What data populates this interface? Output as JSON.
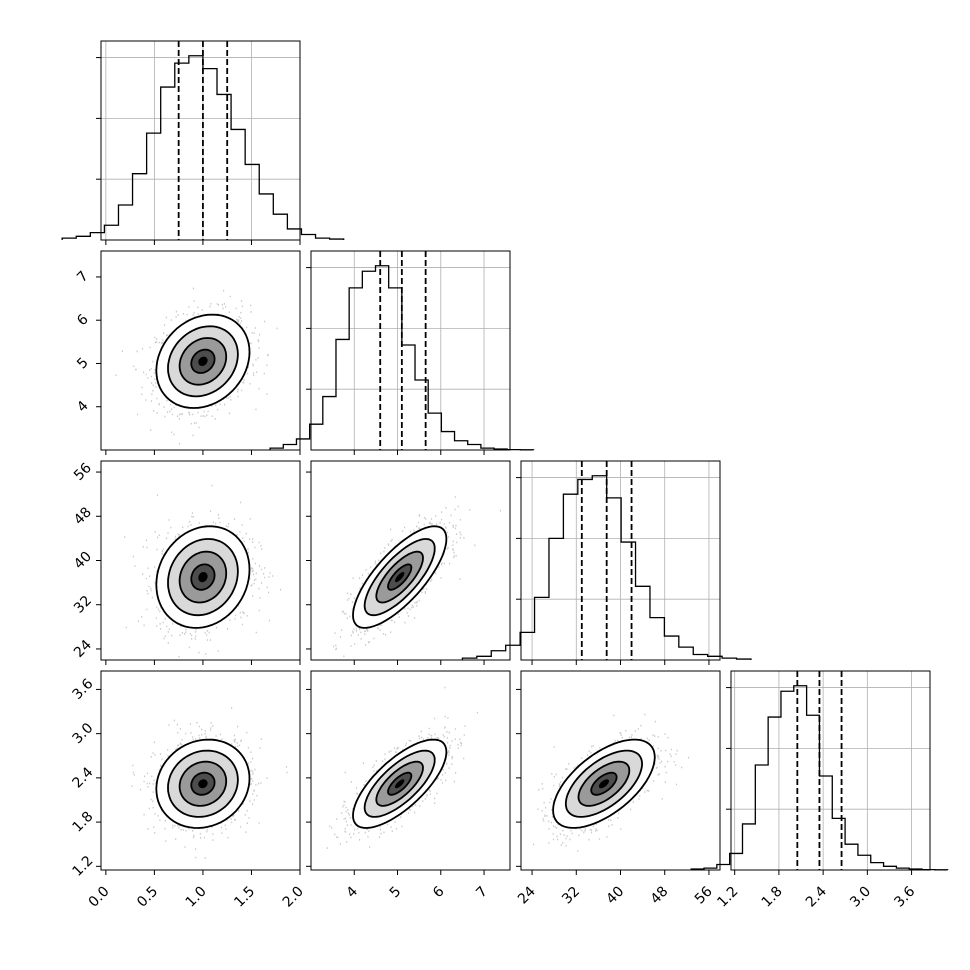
{
  "chart_data": {
    "type": "corner",
    "title": "",
    "parameters": [
      {
        "range": [
          -0.05,
          2.0
        ],
        "ticks": [
          "0.0",
          "0.5",
          "1.0",
          "1.5",
          "2.0"
        ],
        "tick_values": [
          0.0,
          0.5,
          1.0,
          1.5,
          2.0
        ],
        "quantiles": [
          0.75,
          1.0,
          1.25
        ],
        "hist_values": [
          0.01,
          0.02,
          0.04,
          0.08,
          0.19,
          0.36,
          0.58,
          0.83,
          0.96,
          1.0,
          0.93,
          0.79,
          0.6,
          0.41,
          0.25,
          0.14,
          0.06,
          0.03,
          0.01,
          0.005
        ]
      },
      {
        "range": [
          3.0,
          7.6
        ],
        "ticks": [
          "4",
          "5",
          "6",
          "7"
        ],
        "tick_values": [
          4,
          5,
          6,
          7
        ],
        "quantiles": [
          4.6,
          5.1,
          5.65
        ],
        "hist_values": [
          0.01,
          0.03,
          0.06,
          0.14,
          0.29,
          0.6,
          0.88,
          0.97,
          1.0,
          0.88,
          0.57,
          0.38,
          0.2,
          0.1,
          0.05,
          0.03,
          0.01,
          0.005,
          0.002,
          0.001
        ]
      },
      {
        "range": [
          22.0,
          58.0
        ],
        "ticks": [
          "24",
          "32",
          "40",
          "48",
          "56"
        ],
        "tick_values": [
          24,
          32,
          40,
          48,
          56
        ],
        "quantiles": [
          33.0,
          37.5,
          42.0
        ],
        "hist_values": [
          0.01,
          0.02,
          0.05,
          0.08,
          0.15,
          0.34,
          0.66,
          0.9,
          0.98,
          1.0,
          0.88,
          0.64,
          0.4,
          0.23,
          0.13,
          0.07,
          0.03,
          0.02,
          0.01,
          0.005
        ]
      },
      {
        "range": [
          1.15,
          3.85
        ],
        "ticks": [
          "1.2",
          "1.8",
          "2.4",
          "3.0",
          "3.6"
        ],
        "tick_values": [
          1.2,
          1.8,
          2.4,
          3.0,
          3.6
        ],
        "quantiles": [
          2.05,
          2.35,
          2.65
        ],
        "hist_values": [
          0.005,
          0.01,
          0.03,
          0.09,
          0.25,
          0.57,
          0.83,
          0.97,
          1.0,
          0.84,
          0.51,
          0.28,
          0.14,
          0.08,
          0.04,
          0.02,
          0.01,
          0.005,
          0.002,
          0.001
        ]
      }
    ],
    "means": [
      1.0,
      5.05,
      37.0,
      2.32
    ],
    "sds": [
      0.24,
      0.54,
      4.6,
      0.3
    ],
    "correlations": [
      [
        0,
        1,
        0.2
      ],
      [
        0,
        2,
        0.15
      ],
      [
        0,
        3,
        0.12
      ],
      [
        1,
        2,
        0.75
      ],
      [
        1,
        3,
        0.72
      ],
      [
        2,
        3,
        0.6
      ]
    ],
    "contour_levels_sigma": [
      0.5,
      1.0,
      1.5,
      2.0
    ],
    "grid": true,
    "legend": "none"
  }
}
